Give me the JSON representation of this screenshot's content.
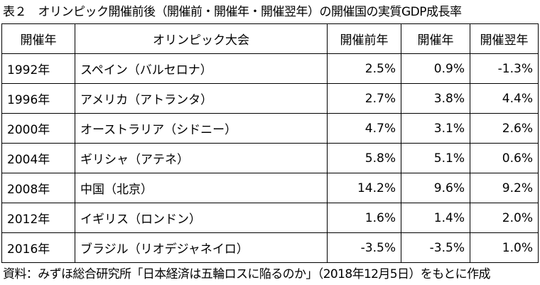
{
  "title": "表２　オリンピック開催前後（開催前・開催年・開催翌年）の開催国の実質GDP成長率",
  "table": {
    "headers": [
      "開催年",
      "オリンピック大会",
      "開催前年",
      "開催年",
      "開催翌年"
    ],
    "rows": [
      [
        "1992年",
        "スペイン（バルセロナ）",
        "2.5%",
        "0.9%",
        "-1.3%"
      ],
      [
        "1996年",
        "アメリカ（アトランタ）",
        "2.7%",
        "3.8%",
        "4.4%"
      ],
      [
        "2000年",
        "オーストラリア（シドニー）",
        "4.7%",
        "3.1%",
        "2.6%"
      ],
      [
        "2004年",
        "ギリシャ（アテネ）",
        "5.8%",
        "5.1%",
        "0.6%"
      ],
      [
        "2008年",
        "中国（北京）",
        "14.2%",
        "9.6%",
        "9.2%"
      ],
      [
        "2012年",
        "イギリス（ロンドン）",
        "1.6%",
        "1.4%",
        "2.0%"
      ],
      [
        "2016年",
        "ブラジル（リオデジャネイロ）",
        "-3.5%",
        "-3.5%",
        "1.0%"
      ]
    ]
  },
  "source": "資料：みずほ総合研究所「日本経済は五輪ロスに陥るのか」（2018年12月5日）をもとに作成"
}
